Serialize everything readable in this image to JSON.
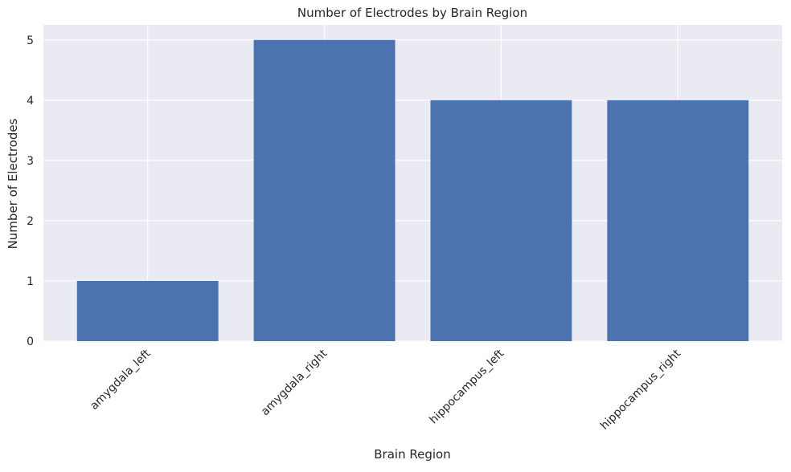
{
  "chart_data": {
    "type": "bar",
    "title": "Number of Electrodes by Brain Region",
    "xlabel": "Brain Region",
    "ylabel": "Number of Electrodes",
    "categories": [
      "amygdala_left",
      "amygdala_right",
      "hippocampus_left",
      "hippocampus_right"
    ],
    "values": [
      1,
      5,
      4,
      4
    ],
    "ylim": [
      0,
      5.25
    ],
    "yticks": [
      0,
      1,
      2,
      3,
      4,
      5
    ],
    "grid": true,
    "legend": "none",
    "colors": {
      "bar": "#4c72b0",
      "plot_background": "#eaeaf2",
      "grid": "#ffffff"
    }
  }
}
